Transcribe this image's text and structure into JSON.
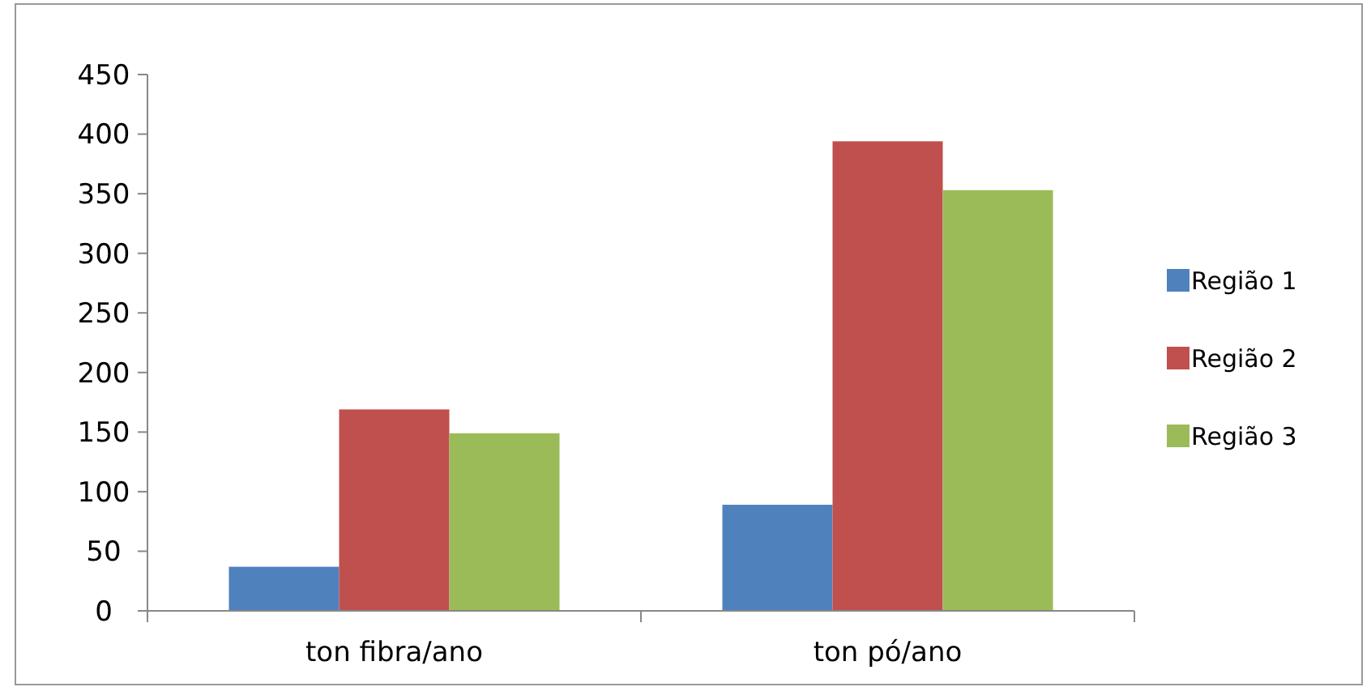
{
  "chart_data": {
    "type": "bar",
    "categories": [
      "ton fibra/ano",
      "ton pó/ano"
    ],
    "series": [
      {
        "name": "Região 1",
        "color": "#4f81bd",
        "values": [
          37,
          89
        ]
      },
      {
        "name": "Região 2",
        "color": "#c0504d",
        "values": [
          169,
          394
        ]
      },
      {
        "name": "Região 3",
        "color": "#9bbb59",
        "values": [
          149,
          353
        ]
      }
    ],
    "ylim": [
      0,
      450
    ],
    "yticks": [
      0,
      50,
      100,
      150,
      200,
      250,
      300,
      350,
      400,
      450
    ],
    "grid": false,
    "legend": "right"
  }
}
